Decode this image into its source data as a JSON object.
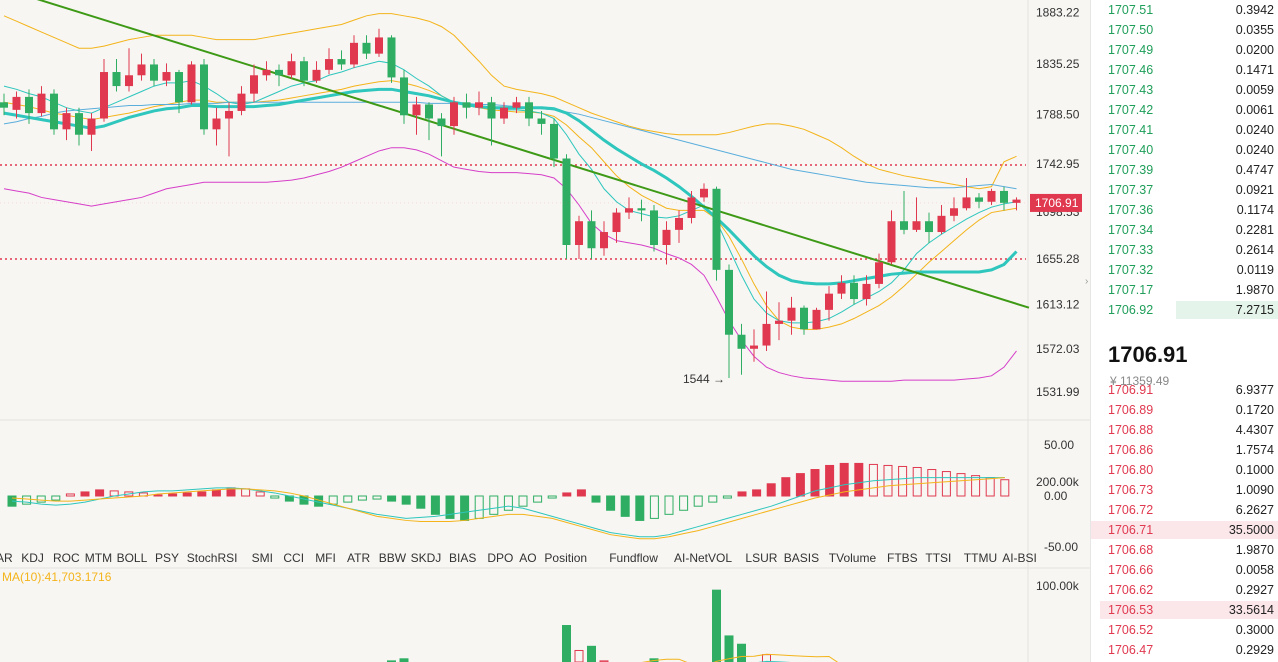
{
  "price_axis": {
    "ticks": [
      "1883.22",
      "1835.25",
      "1788.50",
      "1742.95",
      "1698.53",
      "1655.28",
      "1613.12",
      "1572.03",
      "1531.99"
    ],
    "current_price_tag": "1706.91",
    "ylim": [
      1520,
      1890
    ]
  },
  "annotation": {
    "low_label": "1544"
  },
  "macd_axis": {
    "ticks": [
      "50.00",
      "0.00",
      "-50.00"
    ]
  },
  "indicator_tabs": [
    "AR",
    "KDJ",
    "ROC",
    "MTM",
    "BOLL",
    "PSY",
    "StochRSI",
    "SMI",
    "CCI",
    "MFI",
    "ATR",
    "BBW",
    "SKDJ",
    "BIAS",
    "DPO",
    "AO",
    "Position",
    "Fundflow",
    "AI-NetVOL",
    "LSUR",
    "BASIS",
    "TVolume",
    "FTBS",
    "TTSI",
    "TTMU",
    "AI-BSI"
  ],
  "inactive_tabs": [
    "AI-NetVOL",
    "AI-BSI"
  ],
  "volume_panel": {
    "ma_label": "MA(10):41,703.1716",
    "ticks": [
      "200.00k",
      "100.00k"
    ]
  },
  "colors": {
    "up": "#e0394f",
    "down": "#2fae63",
    "trendline": "#3e9a16",
    "resistance": "#e0394f",
    "band": "#f4b41a",
    "lower_band": "#d63ec8",
    "ma_cyan": "#2ec6bd",
    "ma_blue": "#5aaedc"
  },
  "chart_data": {
    "type": "candlestick",
    "candles": [
      [
        1800,
        1795,
        1808,
        1788
      ],
      [
        1793,
        1805,
        1810,
        1785
      ],
      [
        1805,
        1790,
        1812,
        1780
      ],
      [
        1790,
        1808,
        1815,
        1787
      ],
      [
        1808,
        1775,
        1812,
        1770
      ],
      [
        1775,
        1790,
        1795,
        1765
      ],
      [
        1790,
        1770,
        1795,
        1760
      ],
      [
        1770,
        1785,
        1790,
        1755
      ],
      [
        1785,
        1828,
        1840,
        1782
      ],
      [
        1828,
        1815,
        1840,
        1810
      ],
      [
        1815,
        1825,
        1850,
        1810
      ],
      [
        1825,
        1835,
        1845,
        1820
      ],
      [
        1835,
        1820,
        1840,
        1815
      ],
      [
        1820,
        1828,
        1836,
        1815
      ],
      [
        1828,
        1800,
        1830,
        1790
      ],
      [
        1800,
        1835,
        1838,
        1798
      ],
      [
        1835,
        1775,
        1840,
        1770
      ],
      [
        1775,
        1785,
        1795,
        1760
      ],
      [
        1785,
        1792,
        1800,
        1750
      ],
      [
        1792,
        1808,
        1815,
        1788
      ],
      [
        1808,
        1825,
        1835,
        1800
      ],
      [
        1825,
        1830,
        1838,
        1820
      ],
      [
        1830,
        1825,
        1835,
        1815
      ],
      [
        1825,
        1838,
        1845,
        1822
      ],
      [
        1838,
        1820,
        1842,
        1815
      ],
      [
        1820,
        1830,
        1838,
        1818
      ],
      [
        1830,
        1840,
        1850,
        1826
      ],
      [
        1840,
        1835,
        1848,
        1830
      ],
      [
        1835,
        1855,
        1862,
        1832
      ],
      [
        1855,
        1845,
        1862,
        1840
      ],
      [
        1845,
        1860,
        1868,
        1842
      ],
      [
        1860,
        1823,
        1862,
        1818
      ],
      [
        1823,
        1788,
        1830,
        1780
      ],
      [
        1788,
        1798,
        1805,
        1770
      ],
      [
        1798,
        1785,
        1800,
        1765
      ],
      [
        1785,
        1778,
        1790,
        1750
      ],
      [
        1778,
        1800,
        1805,
        1770
      ],
      [
        1800,
        1795,
        1808,
        1785
      ],
      [
        1795,
        1800,
        1810,
        1788
      ],
      [
        1800,
        1785,
        1805,
        1760
      ],
      [
        1785,
        1795,
        1800,
        1780
      ],
      [
        1795,
        1800,
        1805,
        1790
      ],
      [
        1800,
        1785,
        1805,
        1778
      ],
      [
        1785,
        1780,
        1792,
        1770
      ],
      [
        1780,
        1748,
        1785,
        1740
      ],
      [
        1748,
        1668,
        1752,
        1655
      ],
      [
        1668,
        1690,
        1695,
        1655
      ],
      [
        1690,
        1665,
        1700,
        1655
      ],
      [
        1665,
        1680,
        1690,
        1658
      ],
      [
        1680,
        1698,
        1702,
        1670
      ],
      [
        1698,
        1702,
        1712,
        1692
      ],
      [
        1702,
        1700,
        1710,
        1690
      ],
      [
        1700,
        1668,
        1705,
        1662
      ],
      [
        1668,
        1682,
        1690,
        1650
      ],
      [
        1682,
        1693,
        1700,
        1670
      ],
      [
        1693,
        1712,
        1718,
        1688
      ],
      [
        1712,
        1720,
        1725,
        1708
      ],
      [
        1720,
        1645,
        1722,
        1635
      ],
      [
        1645,
        1585,
        1650,
        1545
      ],
      [
        1585,
        1572,
        1595,
        1548
      ],
      [
        1572,
        1575,
        1590,
        1560
      ],
      [
        1575,
        1595,
        1625,
        1570
      ],
      [
        1595,
        1598,
        1615,
        1580
      ],
      [
        1598,
        1610,
        1620,
        1585
      ],
      [
        1610,
        1590,
        1612,
        1585
      ],
      [
        1590,
        1608,
        1610,
        1590
      ],
      [
        1608,
        1623,
        1630,
        1598
      ],
      [
        1623,
        1633,
        1640,
        1618
      ],
      [
        1633,
        1618,
        1640,
        1613
      ],
      [
        1618,
        1632,
        1640,
        1612
      ],
      [
        1632,
        1652,
        1660,
        1628
      ],
      [
        1652,
        1690,
        1700,
        1650
      ],
      [
        1690,
        1682,
        1718,
        1678
      ],
      [
        1682,
        1690,
        1712,
        1680
      ],
      [
        1690,
        1680,
        1698,
        1670
      ],
      [
        1680,
        1695,
        1705,
        1678
      ],
      [
        1695,
        1702,
        1712,
        1690
      ],
      [
        1702,
        1712,
        1730,
        1700
      ],
      [
        1712,
        1708,
        1716,
        1702
      ],
      [
        1708,
        1718,
        1720,
        1705
      ],
      [
        1718,
        1707,
        1722,
        1700
      ],
      [
        1707,
        1710,
        1712,
        1700
      ]
    ],
    "sma_long": [
      1780,
      1782,
      1785,
      1787,
      1790,
      1792,
      1793,
      1794,
      1795,
      1796,
      1797,
      1797,
      1798,
      1798,
      1798,
      1799,
      1799,
      1799,
      1800,
      1800,
      1800,
      1800,
      1800,
      1800,
      1800,
      1800,
      1800,
      1800,
      1800,
      1800,
      1800,
      1800,
      1800,
      1800,
      1799,
      1799,
      1799,
      1799,
      1798,
      1798,
      1797,
      1796,
      1795,
      1794,
      1793,
      1791,
      1789,
      1786,
      1783,
      1780,
      1777,
      1774,
      1771,
      1768,
      1765,
      1762,
      1759,
      1756,
      1753,
      1750,
      1747,
      1744,
      1741,
      1738,
      1736,
      1734,
      1732,
      1730,
      1728,
      1726,
      1725,
      1724,
      1723,
      1722,
      1721,
      1721,
      1721,
      1722,
      1723,
      1724,
      1722,
      1720
    ],
    "sma_mid": [
      1790,
      1788,
      1786,
      1784,
      1782,
      1780,
      1778,
      1776,
      1778,
      1782,
      1786,
      1789,
      1792,
      1794,
      1795,
      1797,
      1797,
      1796,
      1796,
      1796,
      1796,
      1797,
      1798,
      1800,
      1802,
      1804,
      1806,
      1808,
      1810,
      1811,
      1812,
      1812,
      1810,
      1808,
      1806,
      1803,
      1800,
      1798,
      1796,
      1795,
      1795,
      1795,
      1795,
      1795,
      1794,
      1790,
      1783,
      1774,
      1765,
      1757,
      1750,
      1743,
      1737,
      1730,
      1722,
      1713,
      1703,
      1693,
      1682,
      1670,
      1658,
      1648,
      1640,
      1635,
      1633,
      1632,
      1632,
      1633,
      1635,
      1637,
      1639,
      1641,
      1642,
      1643,
      1643,
      1643,
      1643,
      1643,
      1643,
      1645,
      1650,
      1662
    ],
    "ma_short": [
      1815,
      1812,
      1808,
      1805,
      1800,
      1795,
      1792,
      1790,
      1795,
      1800,
      1805,
      1810,
      1815,
      1818,
      1818,
      1820,
      1815,
      1808,
      1800,
      1798,
      1800,
      1805,
      1810,
      1815,
      1818,
      1820,
      1825,
      1828,
      1832,
      1835,
      1838,
      1836,
      1830,
      1822,
      1815,
      1806,
      1800,
      1797,
      1795,
      1795,
      1793,
      1793,
      1792,
      1790,
      1785,
      1770,
      1752,
      1738,
      1720,
      1708,
      1700,
      1697,
      1694,
      1693,
      1695,
      1700,
      1705,
      1690,
      1665,
      1640,
      1618,
      1605,
      1598,
      1596,
      1596,
      1597,
      1600,
      1606,
      1613,
      1619,
      1625,
      1633,
      1645,
      1660,
      1670,
      1678,
      1685,
      1692,
      1698,
      1703,
      1706,
      1708
    ],
    "bb_upper": [
      1880,
      1875,
      1870,
      1865,
      1860,
      1855,
      1850,
      1850,
      1852,
      1855,
      1858,
      1860,
      1862,
      1862,
      1862,
      1862,
      1860,
      1858,
      1858,
      1858,
      1858,
      1860,
      1862,
      1864,
      1866,
      1868,
      1870,
      1872,
      1876,
      1880,
      1882,
      1882,
      1880,
      1878,
      1875,
      1870,
      1862,
      1850,
      1838,
      1825,
      1815,
      1812,
      1810,
      1808,
      1805,
      1800,
      1795,
      1790,
      1786,
      1782,
      1778,
      1775,
      1773,
      1771,
      1770,
      1770,
      1770,
      1770,
      1772,
      1775,
      1778,
      1780,
      1780,
      1778,
      1775,
      1770,
      1765,
      1758,
      1750,
      1743,
      1738,
      1735,
      1732,
      1730,
      1728,
      1726,
      1724,
      1722,
      1720,
      1722,
      1745,
      1750
    ],
    "bb_middle": [
      1800,
      1798,
      1796,
      1793,
      1790,
      1788,
      1786,
      1784,
      1786,
      1788,
      1790,
      1793,
      1796,
      1798,
      1800,
      1802,
      1802,
      1800,
      1800,
      1800,
      1800,
      1801,
      1802,
      1804,
      1806,
      1808,
      1810,
      1812,
      1815,
      1817,
      1819,
      1820,
      1818,
      1815,
      1811,
      1806,
      1800,
      1797,
      1795,
      1793,
      1792,
      1791,
      1791,
      1790,
      1787,
      1779,
      1768,
      1758,
      1745,
      1732,
      1722,
      1714,
      1708,
      1702,
      1700,
      1700,
      1700,
      1692,
      1676,
      1655,
      1632,
      1612,
      1598,
      1592,
      1590,
      1590,
      1592,
      1595,
      1600,
      1606,
      1612,
      1620,
      1630,
      1641,
      1652,
      1662,
      1672,
      1682,
      1691,
      1698,
      1700,
      1702
    ],
    "bb_lower": [
      1720,
      1718,
      1716,
      1712,
      1710,
      1708,
      1706,
      1704,
      1706,
      1708,
      1710,
      1712,
      1716,
      1720,
      1722,
      1724,
      1726,
      1726,
      1726,
      1726,
      1726,
      1726,
      1727,
      1728,
      1730,
      1733,
      1736,
      1740,
      1745,
      1750,
      1755,
      1758,
      1758,
      1756,
      1752,
      1746,
      1740,
      1738,
      1736,
      1735,
      1735,
      1735,
      1734,
      1733,
      1730,
      1720,
      1705,
      1688,
      1678,
      1672,
      1670,
      1668,
      1665,
      1660,
      1656,
      1650,
      1640,
      1620,
      1598,
      1580,
      1565,
      1555,
      1550,
      1547,
      1545,
      1544,
      1543,
      1542,
      1542,
      1542,
      1542,
      1542,
      1543,
      1543,
      1543,
      1543,
      1543,
      1544,
      1545,
      1547,
      1555,
      1570
    ],
    "trendline": [
      [
        0,
        1905
      ],
      [
        82,
        1610
      ]
    ],
    "resistance": 1742,
    "support": 1655,
    "macd_hist": [
      -10,
      -8,
      -6,
      -4,
      2,
      4,
      6,
      5,
      4,
      3,
      1,
      2,
      3,
      4,
      6,
      8,
      7,
      4,
      -2,
      -5,
      -8,
      -10,
      -8,
      -6,
      -4,
      -3,
      -5,
      -8,
      -12,
      -18,
      -22,
      -24,
      -22,
      -18,
      -14,
      -10,
      -6,
      -2,
      3,
      6,
      -6,
      -14,
      -20,
      -24,
      -22,
      -18,
      -14,
      -10,
      -6,
      -2,
      4,
      6,
      12,
      18,
      22,
      26,
      30,
      32,
      32,
      31,
      30,
      29,
      28,
      26,
      24,
      22,
      20,
      18,
      16
    ],
    "macd_line": [
      -5,
      -6,
      -8,
      -9,
      -8,
      -6,
      -3,
      0,
      2,
      4,
      5,
      5,
      6,
      7,
      8,
      8,
      7,
      5,
      3,
      0,
      -3,
      -6,
      -9,
      -12,
      -15,
      -18,
      -20,
      -22,
      -21,
      -20,
      -18,
      -16,
      -14,
      -12,
      -10,
      -12,
      -16,
      -20,
      -24,
      -28,
      -32,
      -36,
      -38,
      -40,
      -40,
      -38,
      -34,
      -30,
      -26,
      -22,
      -18,
      -14,
      -10,
      -5,
      0,
      5,
      8,
      11,
      13,
      15,
      16,
      17,
      18,
      18,
      18,
      18,
      18,
      18,
      18
    ],
    "signal_line": [
      -2,
      -3,
      -4,
      -5,
      -5,
      -4,
      -3,
      -2,
      -1,
      0,
      2,
      3,
      4,
      5,
      6,
      7,
      7,
      6,
      5,
      3,
      0,
      -4,
      -8,
      -12,
      -16,
      -20,
      -22,
      -24,
      -25,
      -25,
      -25,
      -24,
      -22,
      -20,
      -18,
      -18,
      -20,
      -22,
      -26,
      -30,
      -34,
      -38,
      -40,
      -42,
      -42,
      -40,
      -37,
      -34,
      -30,
      -26,
      -22,
      -18,
      -14,
      -10,
      -6,
      -2,
      1,
      4,
      6,
      8,
      10,
      11,
      12,
      13,
      14,
      15,
      16,
      17,
      18
    ],
    "volume": [
      20,
      12,
      10,
      8,
      18,
      14,
      12,
      10,
      25,
      18,
      12,
      10,
      8,
      6,
      14,
      10,
      22,
      14,
      10,
      8,
      8,
      6,
      8,
      10,
      8,
      6,
      8,
      10,
      12,
      14,
      10,
      28,
      30,
      22,
      18,
      14,
      10,
      8,
      10,
      12,
      8,
      6,
      10,
      12,
      18,
      62,
      38,
      42,
      28,
      22,
      18,
      14,
      30,
      24,
      18,
      14,
      12,
      96,
      52,
      44,
      20,
      34,
      24,
      16,
      12,
      10,
      14,
      16,
      12,
      10,
      14,
      20,
      24,
      16,
      12,
      10,
      8,
      12,
      10,
      8,
      10,
      12
    ]
  },
  "orderbook": {
    "bids": [
      {
        "price": "1707.51",
        "amount": "0.3942"
      },
      {
        "price": "1707.50",
        "amount": "0.0355"
      },
      {
        "price": "1707.49",
        "amount": "0.0200"
      },
      {
        "price": "1707.46",
        "amount": "0.1471"
      },
      {
        "price": "1707.43",
        "amount": "0.0059"
      },
      {
        "price": "1707.42",
        "amount": "0.0061"
      },
      {
        "price": "1707.41",
        "amount": "0.0240"
      },
      {
        "price": "1707.40",
        "amount": "0.0240"
      },
      {
        "price": "1707.39",
        "amount": "0.4747"
      },
      {
        "price": "1707.37",
        "amount": "0.0921"
      },
      {
        "price": "1707.36",
        "amount": "0.1174"
      },
      {
        "price": "1707.34",
        "amount": "0.2281"
      },
      {
        "price": "1707.33",
        "amount": "0.2614"
      },
      {
        "price": "1707.32",
        "amount": "0.0119"
      },
      {
        "price": "1707.17",
        "amount": "1.9870"
      },
      {
        "price": "1706.92",
        "amount": "7.2715",
        "depth": 0.55
      }
    ],
    "last_price": "1706.91",
    "last_cny": "¥ 11359.49",
    "asks": [
      {
        "price": "1706.91",
        "amount": "6.9377"
      },
      {
        "price": "1706.89",
        "amount": "0.1720"
      },
      {
        "price": "1706.88",
        "amount": "4.4307"
      },
      {
        "price": "1706.86",
        "amount": "1.7574"
      },
      {
        "price": "1706.80",
        "amount": "0.1000"
      },
      {
        "price": "1706.73",
        "amount": "1.0090"
      },
      {
        "price": "1706.72",
        "amount": "6.2627"
      },
      {
        "price": "1706.71",
        "amount": "35.5000",
        "depth": 1.0
      },
      {
        "price": "1706.68",
        "amount": "1.9870"
      },
      {
        "price": "1706.66",
        "amount": "0.0058"
      },
      {
        "price": "1706.62",
        "amount": "0.2927"
      },
      {
        "price": "1706.53",
        "amount": "33.5614",
        "depth": 0.95
      },
      {
        "price": "1706.52",
        "amount": "0.3000"
      },
      {
        "price": "1706.47",
        "amount": "0.2929"
      }
    ]
  }
}
